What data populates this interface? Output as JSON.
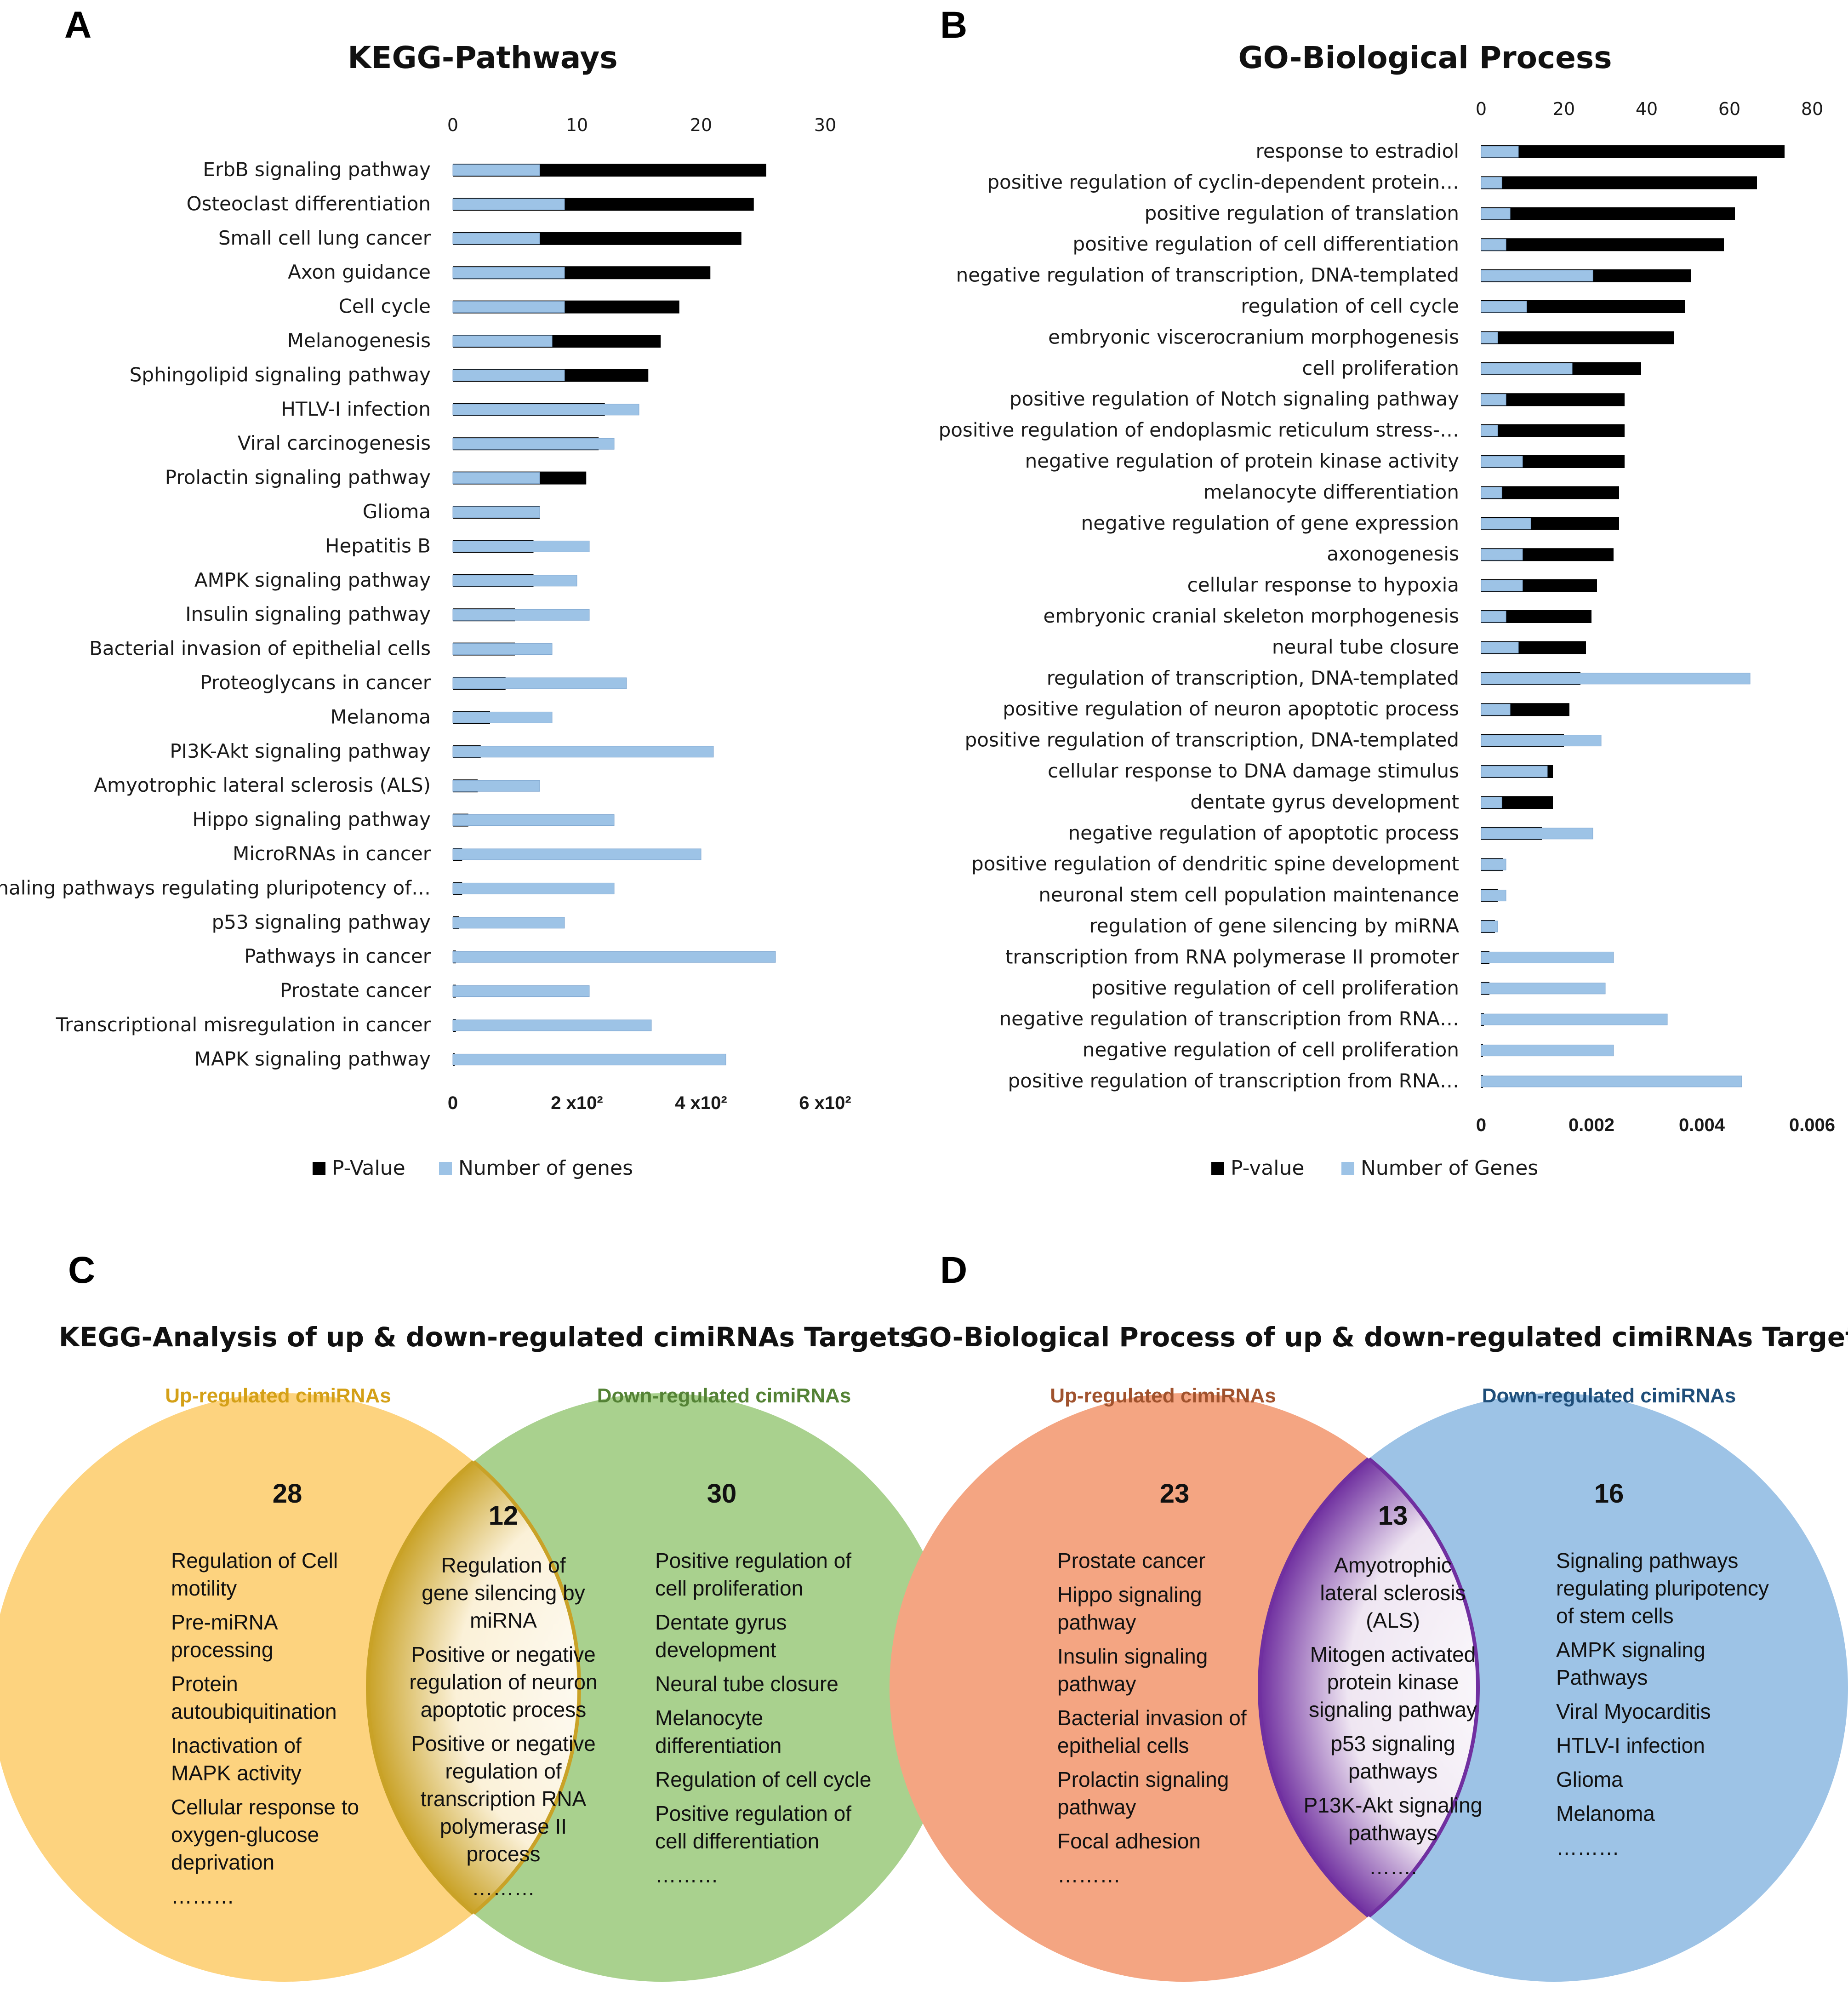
{
  "panels": {
    "A": {
      "letter": "A",
      "chart_data": {
        "type": "bar",
        "title": "KEGG-Pathways",
        "categories": [
          "ErbB signaling pathway",
          "Osteoclast differentiation",
          "Small cell lung cancer",
          "Axon guidance",
          "Cell cycle",
          "Melanogenesis",
          "Sphingolipid signaling pathway",
          "HTLV-I infection",
          "Viral carcinogenesis",
          "Prolactin signaling pathway",
          "Glioma",
          "Hepatitis B",
          "AMPK signaling pathway",
          "Insulin signaling pathway",
          "Bacterial invasion of epithelial cells",
          "Proteoglycans in cancer",
          "Melanoma",
          "PI3K-Akt signaling pathway",
          "Amyotrophic lateral sclerosis (ALS)",
          "Hippo signaling pathway",
          "MicroRNAs in cancer",
          "Signaling pathways regulating pluripotency of…",
          "p53 signaling pathway",
          "Pathways in cancer",
          "Prostate cancer",
          "Transcriptional misregulation in cancer",
          "MAPK signaling pathway"
        ],
        "series": [
          {
            "name": "P-Value",
            "color": "#000000",
            "axis": "bottom",
            "values": [
              505,
              485,
              465,
              415,
              365,
              335,
              315,
              245,
              235,
              215,
              140,
              130,
              130,
              100,
              100,
              85,
              60,
              45,
              40,
              25,
              15,
              15,
              10,
              5,
              5,
              5,
              2
            ]
          },
          {
            "name": "Number of genes",
            "color": "#9dc3e6",
            "axis": "top",
            "values": [
              7,
              9,
              7,
              9,
              9,
              8,
              9,
              15,
              13,
              7,
              7,
              11,
              10,
              11,
              8,
              14,
              8,
              21,
              7,
              13,
              20,
              13,
              9,
              26,
              11,
              16,
              22
            ]
          }
        ],
        "top_axis": {
          "ticks": [
            "0",
            "10",
            "20",
            "30"
          ],
          "values": [
            0,
            10,
            20,
            30
          ],
          "range": [
            0,
            30
          ]
        },
        "bottom_axis": {
          "ticks": [
            "0",
            "2 x10²",
            "4 x10²",
            "6 x10²"
          ],
          "values": [
            0,
            200,
            400,
            600
          ],
          "range": [
            0,
            600
          ]
        },
        "legend": [
          "P-Value",
          "Number of genes"
        ],
        "legend_position": "bottom"
      }
    },
    "B": {
      "letter": "B",
      "chart_data": {
        "type": "bar",
        "title": "GO-Biological Process",
        "categories": [
          "response to estradiol",
          "positive regulation of cyclin-dependent protein…",
          "positive regulation of translation",
          "positive regulation of cell differentiation",
          "negative regulation of transcription, DNA-templated",
          "regulation of cell cycle",
          "embryonic viscerocranium morphogenesis",
          "cell proliferation",
          "positive regulation of Notch signaling pathway",
          "positive regulation of endoplasmic reticulum stress-…",
          "negative regulation of protein kinase activity",
          "melanocyte differentiation",
          "negative regulation of gene expression",
          "axonogenesis",
          "cellular response to hypoxia",
          "embryonic cranial skeleton morphogenesis",
          "neural tube closure",
          "regulation of transcription, DNA-templated",
          "positive regulation of neuron apoptotic process",
          "positive regulation of transcription, DNA-templated",
          "cellular response to DNA damage stimulus",
          "dentate gyrus development",
          "negative regulation of apoptotic process",
          "positive regulation of dendritic spine development",
          "neuronal stem cell population maintenance",
          "regulation of gene silencing by miRNA",
          "transcription from RNA polymerase II promoter",
          "positive regulation of cell proliferation",
          "negative regulation of transcription from RNA…",
          "negative regulation of cell proliferation",
          "positive regulation of transcription from RNA…"
        ],
        "series": [
          {
            "name": "P-value",
            "color": "#000000",
            "axis": "bottom",
            "values": [
              0.0055,
              0.005,
              0.0046,
              0.0044,
              0.0038,
              0.0037,
              0.0035,
              0.0029,
              0.0026,
              0.0026,
              0.0026,
              0.0025,
              0.0025,
              0.0024,
              0.0021,
              0.002,
              0.0019,
              0.0018,
              0.0016,
              0.0015,
              0.0013,
              0.0013,
              0.0011,
              0.0004,
              0.0003,
              0.00025,
              0.00015,
              0.00015,
              5e-05,
              3e-05,
              2e-05
            ]
          },
          {
            "name": "Number of Genes",
            "color": "#9dc3e6",
            "axis": "top",
            "values": [
              9,
              5,
              7,
              6,
              27,
              11,
              4,
              22,
              6,
              4,
              10,
              5,
              12,
              10,
              10,
              6,
              9,
              65,
              7,
              29,
              16,
              5,
              27,
              6,
              6,
              4,
              32,
              30,
              45,
              32,
              63
            ]
          }
        ],
        "top_axis": {
          "ticks": [
            "0",
            "20",
            "40",
            "60",
            "80"
          ],
          "values": [
            0,
            20,
            40,
            60,
            80
          ],
          "range": [
            0,
            80
          ]
        },
        "bottom_axis": {
          "ticks": [
            "0",
            "0.002",
            "0.004",
            "0.006"
          ],
          "values": [
            0,
            0.002,
            0.004,
            0.006
          ],
          "range": [
            0,
            0.006
          ]
        },
        "legend": [
          "P-value",
          "Number of Genes"
        ],
        "legend_position": "bottom"
      }
    },
    "C": {
      "letter": "C",
      "title": "KEGG-Analysis of up & down-regulated cimiRNAs Targets",
      "left_head": "Up-regulated cimiRNAs",
      "right_head": "Down-regulated cimiRNAs",
      "left_count": "28",
      "mid_count": "12",
      "right_count": "30",
      "left_items": [
        [
          "Regulation of Cell",
          "motility"
        ],
        [
          "Pre-miRNA",
          "processing"
        ],
        [
          "Protein",
          "autoubiquitination"
        ],
        [
          "Inactivation of",
          "MAPK activity"
        ],
        [
          "Cellular response to",
          "oxygen-glucose",
          "deprivation"
        ],
        [
          "………"
        ]
      ],
      "mid_items": [
        [
          "Regulation of",
          "gene silencing by",
          "miRNA"
        ],
        [
          "Positive or negative",
          "regulation of neuron",
          "apoptotic process"
        ],
        [
          "Positive or negative",
          "regulation of",
          "transcription RNA",
          "polymerase II",
          "process"
        ],
        [
          "………"
        ]
      ],
      "right_items": [
        [
          "Positive regulation of",
          "cell proliferation"
        ],
        [
          "Dentate gyrus",
          "development"
        ],
        [
          "Neural tube closure"
        ],
        [
          "Melanocyte",
          "differentiation"
        ],
        [
          "Regulation of cell cycle"
        ],
        [
          "Positive regulation of",
          "cell differentiation"
        ],
        [
          "………"
        ]
      ],
      "colors": {
        "left_fill": "#fdd37f",
        "right_fill": "#a9d18e",
        "left_head": "#d4a017",
        "right_head": "#548235"
      }
    },
    "D": {
      "letter": "D",
      "title": "GO-Biological Process of up & down-regulated cimiRNAs Targets",
      "left_head": "Up-regulated cimiRNAs",
      "right_head": "Down-regulated cimiRNAs",
      "left_count": "23",
      "mid_count": "13",
      "right_count": "16",
      "left_items": [
        [
          "Prostate cancer"
        ],
        [
          "Hippo signaling",
          "pathway"
        ],
        [
          "Insulin signaling",
          "pathway"
        ],
        [
          "Bacterial invasion of",
          "epithelial cells"
        ],
        [
          "Prolactin signaling",
          "pathway"
        ],
        [
          "Focal adhesion"
        ],
        [
          "………"
        ]
      ],
      "mid_items": [
        [
          "Amyotrophic",
          "lateral sclerosis",
          "(ALS)"
        ],
        [
          "Mitogen activated",
          "protein kinase",
          "signaling pathway"
        ],
        [
          "p53 signaling",
          "pathways"
        ],
        [
          "P13K-Akt signaling",
          "pathways"
        ],
        [
          "……."
        ]
      ],
      "right_items": [
        [
          "Signaling pathways",
          "regulating pluripotency",
          "of stem cells"
        ],
        [
          "AMPK signaling",
          "Pathways"
        ],
        [
          "Viral Myocarditis"
        ],
        [
          "HTLV-I infection"
        ],
        [
          "Glioma"
        ],
        [
          "Melanoma"
        ],
        [
          "………"
        ]
      ],
      "colors": {
        "left_fill": "#f4a582",
        "right_fill": "#9dc3e6",
        "left_head": "#a0522d",
        "right_head": "#1f4e79"
      }
    }
  }
}
